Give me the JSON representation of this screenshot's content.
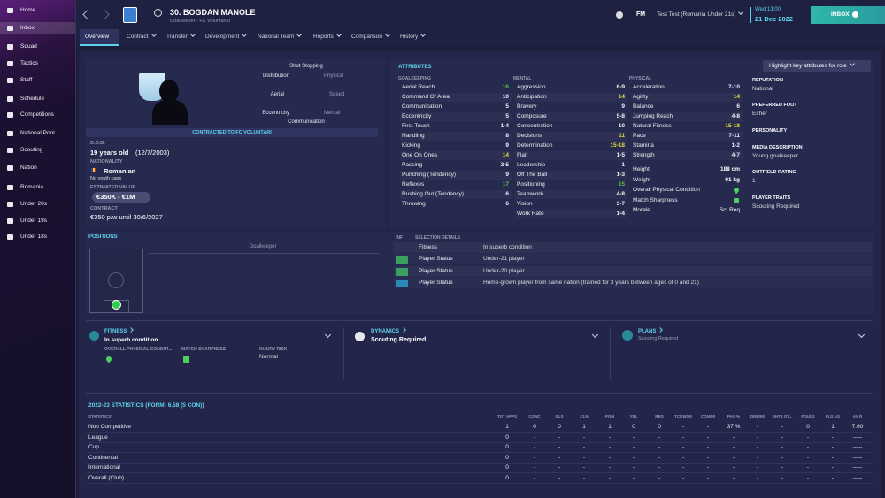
{
  "sidebar": {
    "items": [
      "Home",
      "Inbox",
      "Squad",
      "Tactics",
      "Staff",
      "Schedule",
      "Competitions",
      "National Pool",
      "Scouting",
      "Nation",
      "Romania",
      "Under 20s",
      "Under 19s",
      "Under 18s"
    ]
  },
  "header": {
    "player_name": "30. BOGDAN MANOLE",
    "subtitle": "Goalkeeper - FC Voluntari II",
    "brand": "FM",
    "manager": "Test Test (Romania Under 21s)",
    "time": "Wed 13:00",
    "date": "21 Dec 2022",
    "inbox": "INBOX"
  },
  "tabs": [
    "Overview",
    "Contract",
    "Transfer",
    "Development",
    "National Team",
    "Reports",
    "Comparison",
    "History"
  ],
  "profile": {
    "radar_labels": [
      "Shot Stopping",
      "Physical",
      "Speed",
      "Mental",
      "Communication",
      "Eccentricity",
      "Aerial",
      "Distribution"
    ],
    "contract_banner": "CONTRACTED TO FC VOLUNTARI",
    "dob_label": "D.O.B.",
    "dob": "19 years old",
    "dob_date": "(12/7/2003)",
    "nationality_label": "NATIONALITY",
    "nationality": "Romanian",
    "caps": "No youth caps",
    "value_label": "ESTIMATED VALUE",
    "value": "€350K - €1M",
    "contract_label": "CONTRACT",
    "contract": "€350 p/w until 30/6/2027"
  },
  "attributes": {
    "title": "ATTRIBUTES",
    "highlight_button": "Highlight key attributes for role",
    "goalkeeping": {
      "heading": "GOALKEEPING",
      "items": [
        {
          "name": "Aerial Reach",
          "value": 16
        },
        {
          "name": "Command Of Area",
          "value": 10
        },
        {
          "name": "Communication",
          "value": 5
        },
        {
          "name": "Eccentricity",
          "value": 5
        },
        {
          "name": "First Touch",
          "value": "1-4"
        },
        {
          "name": "Handling",
          "value": 8
        },
        {
          "name": "Kicking",
          "value": 9
        },
        {
          "name": "One On Ones",
          "value": 14
        },
        {
          "name": "Passing",
          "value": "2-5"
        },
        {
          "name": "Punching (Tendency)",
          "value": 9
        },
        {
          "name": "Reflexes",
          "value": 17
        },
        {
          "name": "Rushing Out (Tendency)",
          "value": 6
        },
        {
          "name": "Throwing",
          "value": 6
        }
      ]
    },
    "mental": {
      "heading": "MENTAL",
      "items": [
        {
          "name": "Aggression",
          "value": "6-9"
        },
        {
          "name": "Anticipation",
          "value": 14
        },
        {
          "name": "Bravery",
          "value": 9
        },
        {
          "name": "Composure",
          "value": "5-8"
        },
        {
          "name": "Concentration",
          "value": 10
        },
        {
          "name": "Decisions",
          "value": 11
        },
        {
          "name": "Determination",
          "value": "15-18"
        },
        {
          "name": "Flair",
          "value": "1-5"
        },
        {
          "name": "Leadership",
          "value": 1
        },
        {
          "name": "Off The Ball",
          "value": "1-3"
        },
        {
          "name": "Positioning",
          "value": 15
        },
        {
          "name": "Teamwork",
          "value": "4-8"
        },
        {
          "name": "Vision",
          "value": "3-7"
        },
        {
          "name": "Work Rate",
          "value": "1-4"
        }
      ]
    },
    "physical": {
      "heading": "PHYSICAL",
      "items": [
        {
          "name": "Acceleration",
          "value": "7-10"
        },
        {
          "name": "Agility",
          "value": 14
        },
        {
          "name": "Balance",
          "value": 6
        },
        {
          "name": "Jumping Reach",
          "value": "4-8"
        },
        {
          "name": "Natural Fitness",
          "value": "15-18"
        },
        {
          "name": "Pace",
          "value": "7-11"
        },
        {
          "name": "Stamina",
          "value": "1-2"
        },
        {
          "name": "Strength",
          "value": "4-7"
        }
      ]
    },
    "physical_details": [
      {
        "name": "Height",
        "value": "188 cm"
      },
      {
        "name": "Weight",
        "value": "91 kg"
      },
      {
        "name": "Overall Physical Condition"
      },
      {
        "name": "Match Sharpness"
      },
      {
        "name": "Morale",
        "value": "Sct Req"
      }
    ]
  },
  "info": [
    {
      "label": "REPUTATION",
      "value": "National"
    },
    {
      "label": "PREFERRED FOOT",
      "value": "Either"
    },
    {
      "label": "PERSONALITY"
    },
    {
      "label": "MEDIA DESCRIPTION",
      "value": "Young goalkeeper"
    },
    {
      "label": "OUTFIELD RATING",
      "value": "1"
    },
    {
      "label": "PLAYER TRAITS",
      "value": "Scouting Required"
    }
  ],
  "positions": {
    "title": "POSITIONS",
    "position": "Goalkeeper",
    "inf_header": "INF",
    "details_header": "SELECTION DETAILS",
    "rows": [
      {
        "name": "Fitness",
        "detail": "In superb condition"
      },
      {
        "name": "Player Status",
        "detail": "Under-21 player"
      },
      {
        "name": "Player Status",
        "detail": "Under-20 player"
      },
      {
        "name": "Player Status",
        "detail": "Home-grown player from same nation (trained for 3 years between ages of 0 and 21)"
      }
    ]
  },
  "cards": {
    "fitness": {
      "title": "FITNESS",
      "status": "In superb condition",
      "condition_label": "OVERALL PHYSICAL CONDITI...",
      "sharpness_label": "MATCH SHARPNESS",
      "injury_label": "INJURY RISK",
      "injury": "Normal"
    },
    "dynamics": {
      "title": "DYNAMICS",
      "status": "Scouting Required"
    },
    "plans": {
      "title": "PLANS",
      "status": "Scouting Required"
    }
  },
  "stats": {
    "title": "2022-23 STATISTICS (FORM: 6.58 (5 CON))",
    "columns": [
      "STATISTICS",
      "TOT APPS",
      "CONC",
      "GLS",
      "CLN",
      "POM",
      "YEL",
      "RED",
      "TCKW/90",
      "CON/90",
      "PAS %",
      "DRB/90",
      "SHTS OT...",
      "FOULS",
      "FLS AG",
      "AV R"
    ],
    "rows": [
      [
        "Non Competitive",
        1,
        0,
        0,
        1,
        1,
        0,
        0,
        "-",
        "-",
        "37 %",
        "-",
        "-",
        0,
        1,
        "7.60"
      ],
      [
        "League",
        0,
        "-",
        "-",
        "-",
        "-",
        "-",
        "-",
        "-",
        "-",
        "-",
        "-",
        "-",
        "-",
        "-",
        "-----"
      ],
      [
        "Cup",
        0,
        "-",
        "-",
        "-",
        "-",
        "-",
        "-",
        "-",
        "-",
        "-",
        "-",
        "-",
        "-",
        "-",
        "-----"
      ],
      [
        "Continental",
        0,
        "-",
        "-",
        "-",
        "-",
        "-",
        "-",
        "-",
        "-",
        "-",
        "-",
        "-",
        "-",
        "-",
        "-----"
      ],
      [
        "International",
        0,
        "-",
        "-",
        "-",
        "-",
        "-",
        "-",
        "-",
        "-",
        "-",
        "-",
        "-",
        "-",
        "-",
        "-----"
      ],
      [
        "Overall (Club)",
        0,
        "-",
        "-",
        "-",
        "-",
        "-",
        "-",
        "-",
        "-",
        "-",
        "-",
        "-",
        "-",
        "-",
        "-----"
      ]
    ]
  }
}
